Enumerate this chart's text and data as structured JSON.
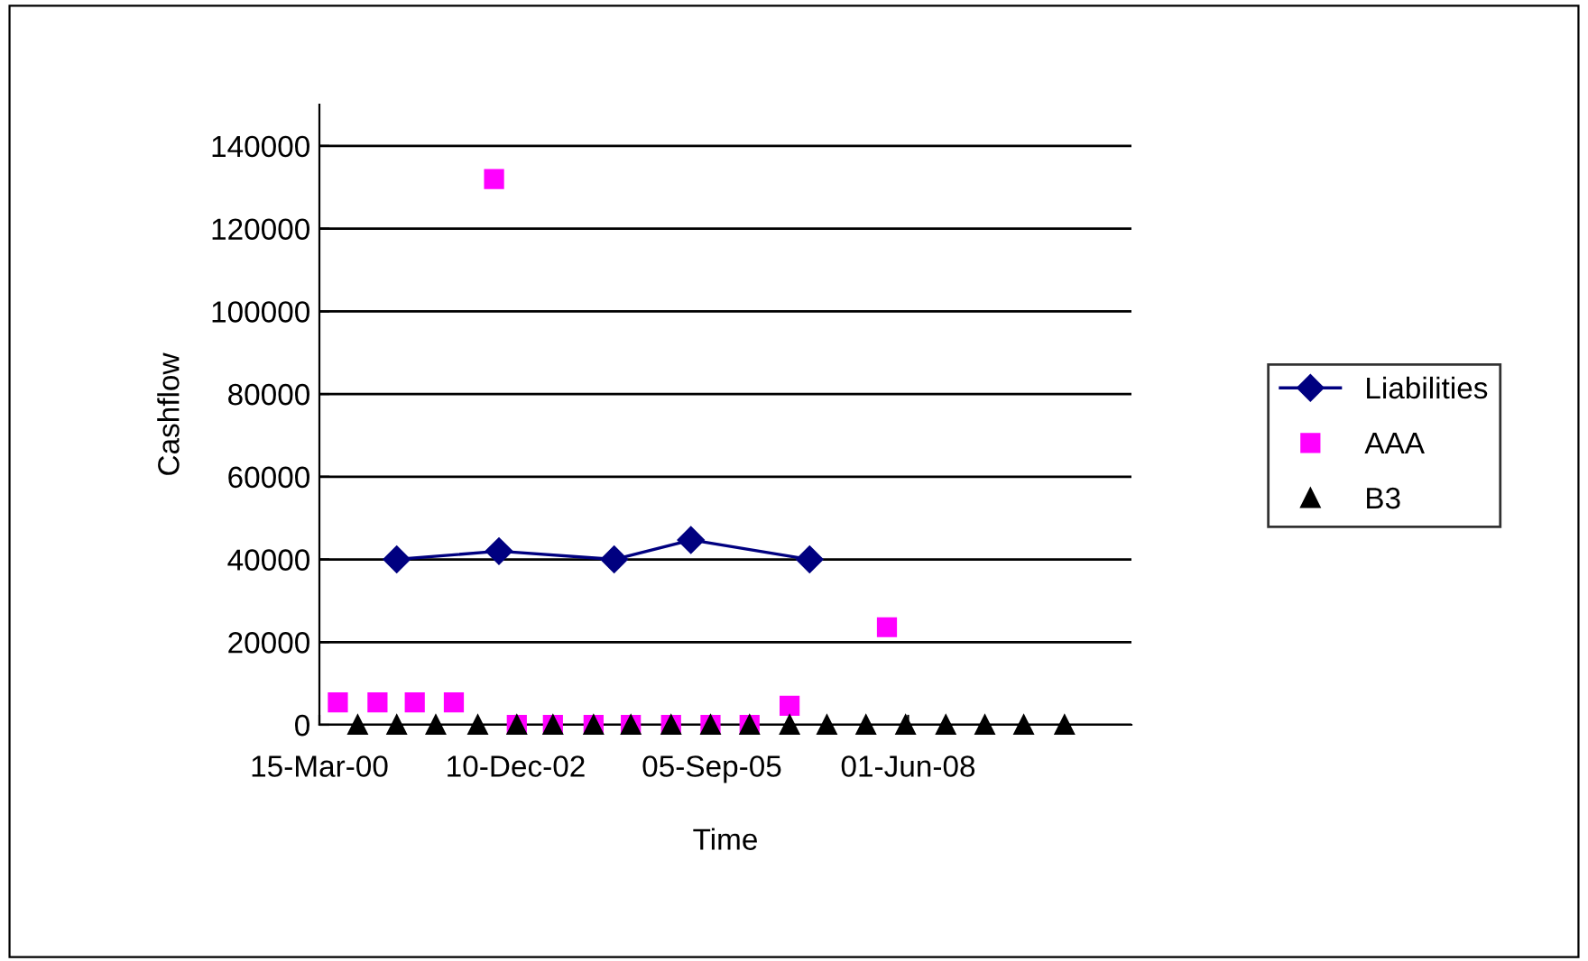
{
  "chart_data": {
    "type": "line",
    "xlabel": "Time",
    "ylabel": "Cashflow",
    "xlim": [
      "2000-03-15",
      "2011-07-14"
    ],
    "xticks": [
      {
        "value": "2000-03-15",
        "label": "15-Mar-00"
      },
      {
        "value": "2002-12-10",
        "label": "10-Dec-02"
      },
      {
        "value": "2005-09-05",
        "label": "05-Sep-05"
      },
      {
        "value": "2008-06-01",
        "label": "01-Jun-08"
      }
    ],
    "ylim": [
      0,
      150000
    ],
    "yticks": [
      0,
      20000,
      40000,
      60000,
      80000,
      100000,
      120000,
      140000
    ],
    "grid": "y",
    "legend": "right",
    "series": [
      {
        "name": "Liabilities",
        "marker": "diamond",
        "line_style": "solid",
        "color": "#000080",
        "x": [
          "2001-04-13",
          "2002-09-16",
          "2004-04-25",
          "2005-05-21",
          "2007-01-16"
        ],
        "values": [
          40000,
          42000,
          40000,
          44700,
          40000
        ]
      },
      {
        "name": "AAA",
        "type": "scatter",
        "marker": "square",
        "color": "#ff00ff",
        "x": [
          "2000-06-17",
          "2001-01-05",
          "2001-07-14",
          "2002-01-29",
          "2002-08-22",
          "2002-12-16",
          "2003-06-18",
          "2004-01-11",
          "2004-07-19",
          "2005-02-09",
          "2005-08-29",
          "2006-03-16",
          "2006-10-06",
          "2008-02-14"
        ],
        "values": [
          5400,
          5400,
          5400,
          5400,
          132000,
          0,
          0,
          0,
          0,
          0,
          0,
          0,
          4600,
          23600
        ]
      },
      {
        "name": "B3",
        "type": "scatter",
        "marker": "triangle",
        "color": "#000000",
        "x": [
          "2000-09-26",
          "2001-04-13",
          "2001-10-29",
          "2002-05-31",
          "2002-12-16",
          "2003-06-18",
          "2004-01-11",
          "2004-07-19",
          "2005-02-09",
          "2005-08-29",
          "2006-03-16",
          "2006-10-06",
          "2007-04-14",
          "2007-10-30",
          "2008-05-19",
          "2008-12-10",
          "2009-06-27",
          "2010-01-11",
          "2010-08-07"
        ],
        "values": [
          0,
          0,
          0,
          0,
          0,
          0,
          0,
          0,
          0,
          0,
          0,
          0,
          0,
          0,
          0,
          0,
          0,
          0,
          0
        ]
      }
    ]
  }
}
